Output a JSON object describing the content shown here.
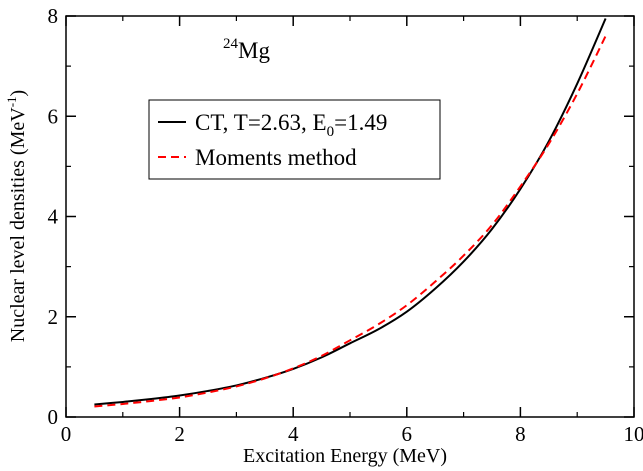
{
  "chart_data": {
    "type": "line",
    "xlabel": "Excitation Energy (MeV)",
    "ylabel": {
      "main": "Nuclear level densities (MeV",
      "sup": "-1",
      "close": ")"
    },
    "xlim": [
      0,
      10
    ],
    "ylim": [
      0,
      8
    ],
    "x_ticks": [
      "0",
      "2",
      "4",
      "6",
      "8",
      "10"
    ],
    "y_ticks": [
      "0",
      "2",
      "4",
      "6",
      "8"
    ],
    "x_tick_values": [
      0,
      2,
      4,
      6,
      8,
      10
    ],
    "y_tick_values": [
      0,
      2,
      4,
      6,
      8
    ],
    "grid": false,
    "legend_position": "upper-left",
    "annotation": {
      "sup": "24",
      "text": "Mg"
    },
    "series": [
      {
        "legend": {
          "prefix": "CT, T=2.63, E",
          "sub": "0",
          "suffix": "=1.49"
        },
        "color": "#000000",
        "style": "solid",
        "x": [
          0.5,
          1.0,
          1.5,
          2.0,
          2.5,
          3.0,
          3.5,
          4.0,
          4.5,
          5.0,
          5.5,
          6.0,
          6.5,
          7.0,
          7.5,
          8.0,
          8.5,
          9.0,
          9.5
        ],
        "y": [
          0.25,
          0.3,
          0.36,
          0.43,
          0.52,
          0.63,
          0.78,
          0.96,
          1.19,
          1.47,
          1.75,
          2.1,
          2.56,
          3.1,
          3.75,
          4.55,
          5.5,
          6.65,
          7.95
        ]
      },
      {
        "legend": {
          "text": "Moments method"
        },
        "color": "#ff0000",
        "style": "dashed",
        "x": [
          0.5,
          1.0,
          1.5,
          2.0,
          2.5,
          3.0,
          3.5,
          4.0,
          4.5,
          5.0,
          5.5,
          6.0,
          6.5,
          7.0,
          7.5,
          8.0,
          8.5,
          9.0,
          9.5
        ],
        "y": [
          0.21,
          0.26,
          0.32,
          0.39,
          0.49,
          0.61,
          0.77,
          0.97,
          1.22,
          1.53,
          1.85,
          2.23,
          2.7,
          3.22,
          3.83,
          4.6,
          5.45,
          6.45,
          7.6
        ]
      }
    ]
  }
}
